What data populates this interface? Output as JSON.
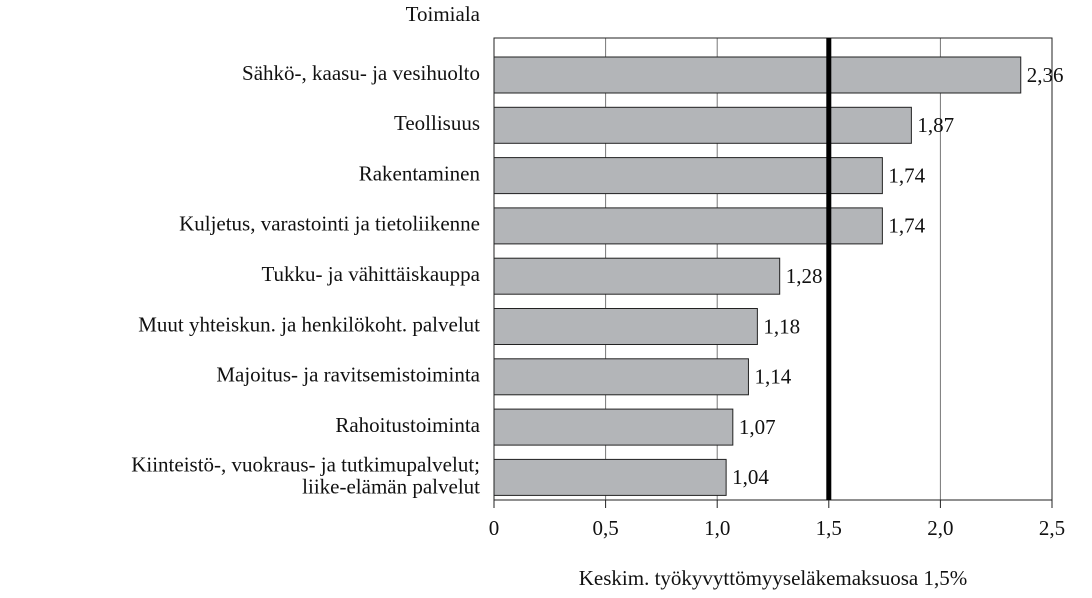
{
  "chart_data": {
    "type": "barh",
    "y_label": "Toimiala",
    "x_label": "Keskim. työkyvyttömyyseläkemaksuosa 1,5%",
    "categories": [
      "Sähkö-, kaasu- ja vesihuolto",
      "Teollisuus",
      "Rakentaminen",
      "Kuljetus, varastointi ja  tietoliikenne",
      "Tukku- ja vähittäiskauppa",
      "Muut yhteiskun.  ja henkilökoht. palvelut",
      "Majoitus- ja ravitsemistoiminta",
      "Rahoitustoiminta",
      "Kiinteistö-, vuokraus- ja tutkimupalvelut;\nliike-elämän palvelut"
    ],
    "values": [
      2.36,
      1.87,
      1.74,
      1.74,
      1.28,
      1.18,
      1.14,
      1.07,
      1.04
    ],
    "value_labels": [
      "2,36",
      "1,87",
      "1,74",
      "1,74",
      "1,28",
      "1,18",
      "1,14",
      "1,07",
      "1,04"
    ],
    "color": "#b3b5b8",
    "reference_value": 1.5,
    "xlim": [
      0,
      2.5
    ],
    "xticks": [
      0,
      {
        "value": 0.5,
        "label": "0,5"
      },
      {
        "value": 1.0,
        "label": "1,0"
      },
      {
        "value": 1.5,
        "label": "1,5"
      },
      {
        "value": 2.0,
        "label": "2,0"
      },
      {
        "value": 2.5,
        "label": "2,5"
      }
    ],
    "grid": true
  }
}
